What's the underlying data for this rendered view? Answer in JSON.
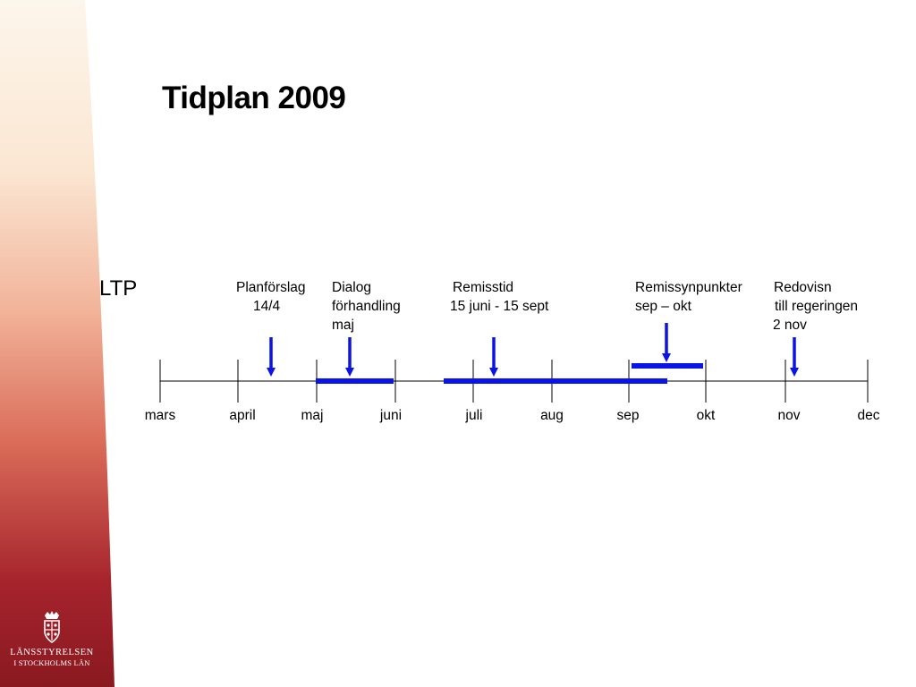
{
  "slide": {
    "title": "Tidplan 2009",
    "row_label": "LTP"
  },
  "logo": {
    "line1": "LÄNSSTYRELSEN",
    "line2": "I STOCKHOLMS LÄN"
  },
  "timeline": {
    "months": [
      "mars",
      "april",
      "maj",
      "juni",
      "juli",
      "aug",
      "sep",
      "okt",
      "nov",
      "dec"
    ]
  },
  "events": [
    {
      "lines": [
        "Planförslag",
        "14/4"
      ]
    },
    {
      "lines": [
        "Dialog",
        "förhandling",
        "maj"
      ]
    },
    {
      "lines": [
        "Remisstid",
        "15 juni  - 15 sept"
      ]
    },
    {
      "lines": [
        "Remissynpunkter",
        "sep  –  okt"
      ]
    },
    {
      "lines": [
        "Redovisn",
        "till regeringen",
        "2 nov"
      ]
    }
  ],
  "colors": {
    "band_top": "#fdf5ea",
    "band_bottom": "#8c1a22",
    "bar": "#0a14e6",
    "axis": "#000000"
  }
}
